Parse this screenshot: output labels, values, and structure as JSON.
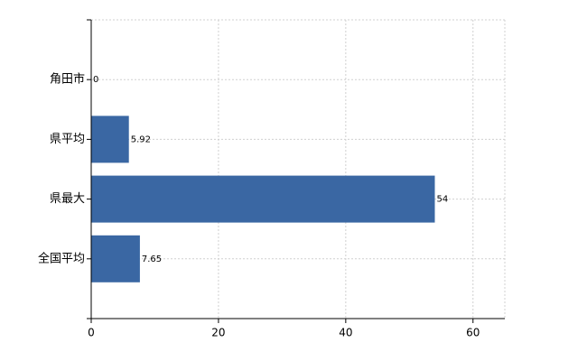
{
  "chart_data": {
    "type": "bar",
    "orientation": "horizontal",
    "categories": [
      "角田市",
      "県平均",
      "県最大",
      "全国平均"
    ],
    "values": [
      0,
      5.92,
      54,
      7.65
    ],
    "color": "#3a67a3",
    "xlim": [
      0,
      65
    ],
    "xticks": [
      0,
      20,
      40,
      60
    ],
    "grid": true
  }
}
